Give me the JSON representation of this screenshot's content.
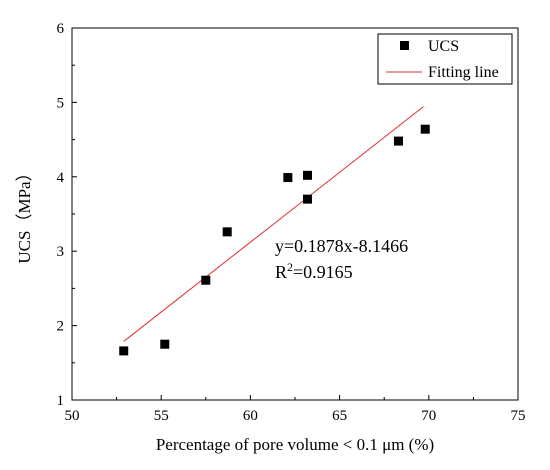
{
  "chart_data": {
    "type": "scatter",
    "xlabel": "Percentage of pore volume < 0.1 μm (%)",
    "ylabel": "UCS（MPa）",
    "xlim": [
      50,
      75
    ],
    "ylim": [
      1,
      6
    ],
    "xticks": [
      50,
      55,
      60,
      65,
      70,
      75
    ],
    "yticks": [
      1,
      2,
      3,
      4,
      5,
      6
    ],
    "grid": false,
    "legend_position": "top-right",
    "series": [
      {
        "name": "UCS",
        "marker": "square",
        "color": "#000000",
        "points": [
          {
            "x": 52.9,
            "y": 1.66
          },
          {
            "x": 55.2,
            "y": 1.75
          },
          {
            "x": 57.5,
            "y": 2.61
          },
          {
            "x": 58.7,
            "y": 3.26
          },
          {
            "x": 62.1,
            "y": 3.99
          },
          {
            "x": 63.2,
            "y": 4.02
          },
          {
            "x": 63.2,
            "y": 3.7
          },
          {
            "x": 68.3,
            "y": 4.48
          },
          {
            "x": 69.8,
            "y": 4.64
          }
        ]
      },
      {
        "name": "Fitting line",
        "type": "line",
        "color": "#e03030",
        "slope": 0.1878,
        "intercept": -8.1466,
        "x_range": [
          52.9,
          69.7
        ]
      }
    ],
    "annotations": {
      "equation": "y=0.1878x-8.1466",
      "r2_prefix": "R",
      "r2_sup": "2",
      "r2_value": "=0.9165"
    }
  }
}
